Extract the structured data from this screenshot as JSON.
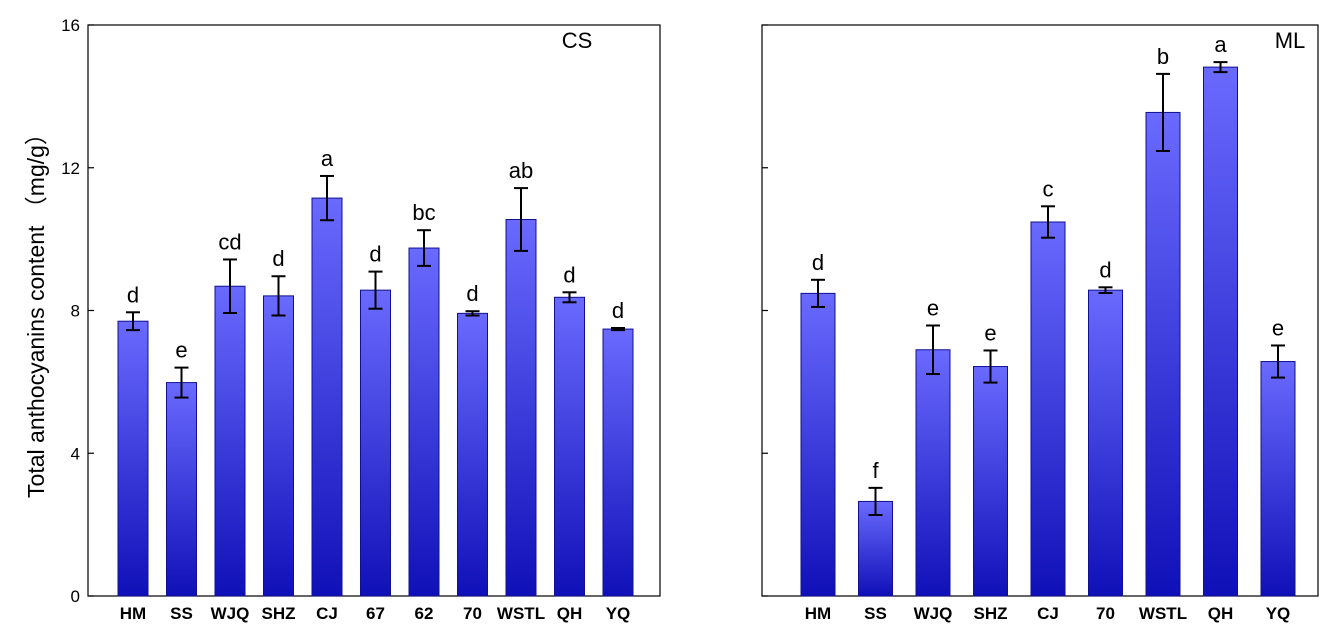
{
  "chart_data": {
    "ylabel": "Total anthocyanins content （mg/g）",
    "panels": [
      {
        "type": "bar",
        "title": "CS",
        "ylim": [
          0,
          16
        ],
        "yticks": [
          0,
          4,
          8,
          12,
          16
        ],
        "categories": [
          "HM",
          "SS",
          "WJQ",
          "SHZ",
          "CJ",
          "67",
          "62",
          "70",
          "WSTL",
          "QH",
          "YQ"
        ],
        "values": [
          7.7,
          5.98,
          8.68,
          8.41,
          11.15,
          8.57,
          9.75,
          7.92,
          10.55,
          8.37,
          7.48
        ],
        "errors": [
          0.25,
          0.42,
          0.75,
          0.55,
          0.62,
          0.52,
          0.5,
          0.06,
          0.88,
          0.14,
          0.03
        ],
        "significance": [
          "d",
          "e",
          "cd",
          "d",
          "a",
          "d",
          "bc",
          "d",
          "ab",
          "d",
          "d"
        ],
        "show_tick_labels": true
      },
      {
        "type": "bar",
        "title": "ML",
        "ylim": [
          0,
          16
        ],
        "yticks": [
          0,
          4,
          8,
          12,
          16
        ],
        "categories": [
          "HM",
          "SS",
          "WJQ",
          "SHZ",
          "CJ",
          "70",
          "WSTL",
          "QH",
          "YQ"
        ],
        "values": [
          8.48,
          2.65,
          6.9,
          6.43,
          10.48,
          8.57,
          13.55,
          14.82,
          6.57
        ],
        "errors": [
          0.38,
          0.38,
          0.68,
          0.45,
          0.44,
          0.08,
          1.08,
          0.14,
          0.45
        ],
        "significance": [
          "d",
          "f",
          "e",
          "e",
          "c",
          "d",
          "b",
          "a",
          "e"
        ],
        "show_tick_labels": false
      }
    ],
    "colors": {
      "bar_light": "#6a6aff",
      "bar_dark": "#1010b8",
      "bar_edge": "#101090"
    }
  }
}
